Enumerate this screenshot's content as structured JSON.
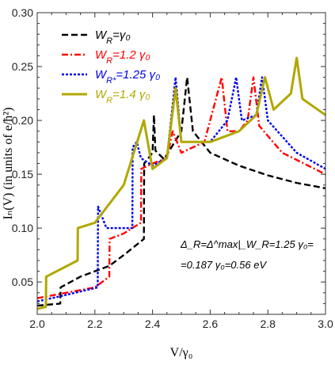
{
  "chart_data": {
    "type": "line",
    "xlabel": "V/γ₀",
    "ylabel": "Iₙ(V) (in units of e/ħ²)",
    "xlim": [
      2.0,
      3.0
    ],
    "ylim": [
      0.02,
      0.3
    ],
    "xticks": [
      "2.0",
      "2.2",
      "2.4",
      "2.6",
      "2.8",
      "3.0"
    ],
    "yticks": [
      "0.05",
      "0.10",
      "0.15",
      "0.20",
      "0.25",
      "0.30"
    ],
    "legend_position": "top-left",
    "grid": false,
    "series": [
      {
        "name": "W_R=γ₀",
        "legend_label": "W",
        "legend_sub": "R",
        "legend_tail": "=γ₀",
        "color": "#000000",
        "dash": "8,4",
        "points": [
          [
            2.0,
            0.028
          ],
          [
            2.08,
            0.03
          ],
          [
            2.081,
            0.045
          ],
          [
            2.15,
            0.055
          ],
          [
            2.25,
            0.065
          ],
          [
            2.3,
            0.075
          ],
          [
            2.37,
            0.09
          ],
          [
            2.371,
            0.16
          ],
          [
            2.4,
            0.17
          ],
          [
            2.405,
            0.205
          ],
          [
            2.41,
            0.172
          ],
          [
            2.44,
            0.164
          ],
          [
            2.5,
            0.19
          ],
          [
            2.52,
            0.24
          ],
          [
            2.54,
            0.19
          ],
          [
            2.6,
            0.17
          ],
          [
            2.7,
            0.158
          ],
          [
            2.8,
            0.149
          ],
          [
            2.9,
            0.142
          ],
          [
            3.0,
            0.137
          ]
        ]
      },
      {
        "name": "W_R=1.2γ₀",
        "legend_label": "W",
        "legend_sub": "R",
        "legend_tail": "=1.2 γ₀",
        "color": "#ff0000",
        "dash": "8,3,2,3",
        "points": [
          [
            2.0,
            0.035
          ],
          [
            2.1,
            0.04
          ],
          [
            2.2,
            0.045
          ],
          [
            2.25,
            0.055
          ],
          [
            2.251,
            0.09
          ],
          [
            2.3,
            0.095
          ],
          [
            2.36,
            0.105
          ],
          [
            2.361,
            0.155
          ],
          [
            2.4,
            0.16
          ],
          [
            2.45,
            0.165
          ],
          [
            2.47,
            0.19
          ],
          [
            2.5,
            0.17
          ],
          [
            2.58,
            0.18
          ],
          [
            2.64,
            0.24
          ],
          [
            2.66,
            0.19
          ],
          [
            2.7,
            0.19
          ],
          [
            2.73,
            0.2
          ],
          [
            2.75,
            0.24
          ],
          [
            2.77,
            0.195
          ],
          [
            2.85,
            0.17
          ],
          [
            3.0,
            0.15
          ]
        ]
      },
      {
        "name": "W_R*=1.25γ₀",
        "legend_label": "W",
        "legend_sub": "R*",
        "legend_tail": "=1.25 γ₀",
        "color": "#0000ee",
        "dash": "3,2",
        "points": [
          [
            2.0,
            0.032
          ],
          [
            2.1,
            0.038
          ],
          [
            2.21,
            0.045
          ],
          [
            2.211,
            0.12
          ],
          [
            2.24,
            0.1
          ],
          [
            2.33,
            0.1
          ],
          [
            2.331,
            0.175
          ],
          [
            2.345,
            0.18
          ],
          [
            2.36,
            0.165
          ],
          [
            2.4,
            0.158
          ],
          [
            2.45,
            0.165
          ],
          [
            2.48,
            0.24
          ],
          [
            2.5,
            0.18
          ],
          [
            2.6,
            0.18
          ],
          [
            2.66,
            0.2
          ],
          [
            2.69,
            0.24
          ],
          [
            2.71,
            0.2
          ],
          [
            2.76,
            0.205
          ],
          [
            2.78,
            0.24
          ],
          [
            2.8,
            0.2
          ],
          [
            2.9,
            0.17
          ],
          [
            3.0,
            0.155
          ]
        ]
      },
      {
        "name": "W_R=1.4γ₀",
        "legend_label": "W",
        "legend_sub": "R",
        "legend_tail": "=1.4 γ₀",
        "color": "#b0a800",
        "dash": "",
        "points": [
          [
            2.0,
            0.025
          ],
          [
            2.03,
            0.027
          ],
          [
            2.031,
            0.055
          ],
          [
            2.14,
            0.07
          ],
          [
            2.141,
            0.1
          ],
          [
            2.2,
            0.105
          ],
          [
            2.3,
            0.14
          ],
          [
            2.37,
            0.2
          ],
          [
            2.4,
            0.155
          ],
          [
            2.45,
            0.165
          ],
          [
            2.48,
            0.23
          ],
          [
            2.5,
            0.18
          ],
          [
            2.6,
            0.18
          ],
          [
            2.7,
            0.19
          ],
          [
            2.76,
            0.205
          ],
          [
            2.79,
            0.24
          ],
          [
            2.82,
            0.21
          ],
          [
            2.88,
            0.225
          ],
          [
            2.9,
            0.258
          ],
          [
            2.92,
            0.22
          ],
          [
            3.0,
            0.205
          ]
        ]
      }
    ],
    "annotation": {
      "line1": "Δ_R=Δ^max|_W_R=1.25 γ₀=",
      "line2": "=0.187 γ₀=0.56  eV"
    }
  }
}
